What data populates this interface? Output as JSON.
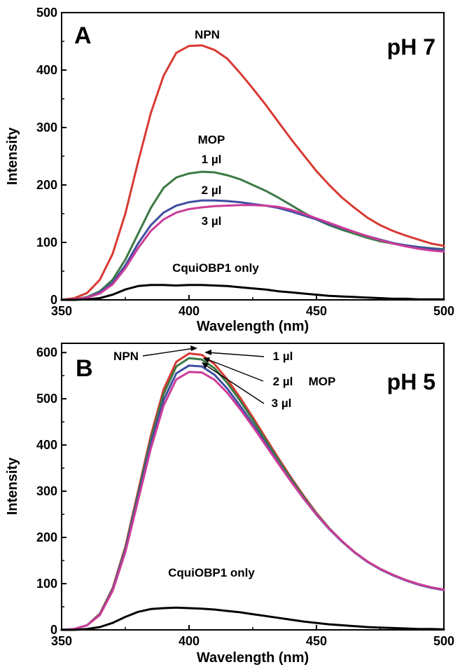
{
  "chart_data": [
    {
      "type": "line",
      "panel_label": "A",
      "condition": "pH 7",
      "xlabel": "Wavelength (nm)",
      "ylabel": "Intensity",
      "xlim": [
        350,
        500
      ],
      "ylim": [
        0,
        500
      ],
      "xticks": [
        "350",
        "400",
        "450",
        "500"
      ],
      "yticks": [
        "0",
        "100",
        "200",
        "300",
        "400",
        "500"
      ],
      "x": [
        350,
        355,
        360,
        365,
        370,
        375,
        380,
        385,
        390,
        395,
        400,
        405,
        410,
        415,
        420,
        425,
        430,
        435,
        440,
        445,
        450,
        455,
        460,
        465,
        470,
        475,
        480,
        485,
        490,
        495,
        500
      ],
      "series": [
        {
          "name": "NPN",
          "color": "#d83a33",
          "values": [
            0,
            3,
            12,
            35,
            80,
            150,
            240,
            325,
            390,
            430,
            442,
            443,
            435,
            420,
            395,
            368,
            340,
            310,
            280,
            252,
            224,
            200,
            178,
            160,
            143,
            130,
            120,
            112,
            105,
            98,
            94
          ]
        },
        {
          "name": "1 µl",
          "color": "#3c7a45",
          "values": [
            0,
            1,
            5,
            15,
            35,
            70,
            115,
            160,
            195,
            213,
            220,
            223,
            222,
            217,
            210,
            200,
            190,
            178,
            165,
            152,
            140,
            130,
            122,
            115,
            108,
            102,
            98,
            95,
            92,
            90,
            88
          ]
        },
        {
          "name": "2 µl",
          "color": "#3f4ea2",
          "values": [
            0,
            1,
            4,
            13,
            30,
            60,
            98,
            130,
            152,
            164,
            170,
            173,
            173,
            172,
            170,
            167,
            164,
            160,
            154,
            147,
            140,
            132,
            125,
            118,
            111,
            105,
            99,
            95,
            92,
            89,
            87
          ]
        },
        {
          "name": "3 µl",
          "color": "#cc3c98",
          "values": [
            0,
            1,
            4,
            11,
            27,
            55,
            90,
            120,
            140,
            152,
            158,
            161,
            163,
            164,
            165,
            165,
            164,
            162,
            157,
            150,
            142,
            134,
            126,
            118,
            111,
            104,
            98,
            93,
            89,
            86,
            84
          ]
        },
        {
          "name": "CquiOBP1 only",
          "color": "#000000",
          "values": [
            0,
            0,
            1,
            3,
            9,
            18,
            24,
            26,
            26,
            25,
            26,
            26,
            25,
            24,
            22,
            20,
            18,
            15,
            13,
            11,
            9,
            7,
            6,
            5,
            4,
            3,
            2,
            2,
            1,
            1,
            1
          ]
        }
      ],
      "annotations": [
        "NPN",
        "MOP",
        "1 µl",
        "2 µl",
        "3 µl",
        "CquiOBP1 only"
      ]
    },
    {
      "type": "line",
      "panel_label": "B",
      "condition": "pH 5",
      "xlabel": "Wavelength (nm)",
      "ylabel": "Intensity",
      "xlim": [
        350,
        500
      ],
      "ylim": [
        0,
        620
      ],
      "xticks": [
        "350",
        "400",
        "450",
        "500"
      ],
      "yticks": [
        "0",
        "100",
        "200",
        "300",
        "400",
        "500",
        "600"
      ],
      "x": [
        350,
        355,
        360,
        365,
        370,
        375,
        380,
        385,
        390,
        395,
        400,
        405,
        410,
        415,
        420,
        425,
        430,
        435,
        440,
        445,
        450,
        455,
        460,
        465,
        470,
        475,
        480,
        485,
        490,
        495,
        500
      ],
      "series": [
        {
          "name": "NPN",
          "color": "#d83a33",
          "values": [
            0,
            2,
            10,
            35,
            90,
            180,
            300,
            420,
            520,
            580,
            598,
            595,
            575,
            542,
            503,
            460,
            416,
            372,
            330,
            290,
            253,
            220,
            192,
            168,
            148,
            132,
            119,
            108,
            99,
            92,
            87
          ]
        },
        {
          "name": "1 µl",
          "color": "#3c7a45",
          "values": [
            0,
            2,
            10,
            34,
            88,
            176,
            294,
            412,
            510,
            570,
            588,
            585,
            566,
            534,
            496,
            454,
            411,
            368,
            327,
            288,
            252,
            220,
            192,
            168,
            148,
            132,
            119,
            108,
            99,
            92,
            87
          ]
        },
        {
          "name": "2 µl",
          "color": "#3f4ea2",
          "values": [
            0,
            2,
            10,
            33,
            86,
            172,
            287,
            402,
            497,
            555,
            572,
            570,
            552,
            522,
            485,
            445,
            404,
            362,
            322,
            284,
            249,
            218,
            191,
            167,
            147,
            131,
            118,
            107,
            98,
            91,
            86
          ]
        },
        {
          "name": "3 µl",
          "color": "#cc3c98",
          "values": [
            0,
            2,
            10,
            32,
            84,
            168,
            280,
            392,
            485,
            542,
            558,
            557,
            541,
            513,
            478,
            440,
            400,
            360,
            321,
            284,
            250,
            219,
            192,
            168,
            148,
            132,
            119,
            108,
            99,
            92,
            87
          ]
        },
        {
          "name": "CquiOBP1 only",
          "color": "#000000",
          "values": [
            0,
            0,
            2,
            6,
            15,
            28,
            39,
            45,
            47,
            48,
            47,
            46,
            44,
            41,
            38,
            34,
            30,
            26,
            22,
            18,
            15,
            12,
            10,
            8,
            6,
            5,
            4,
            3,
            2,
            2,
            1
          ]
        }
      ],
      "annotations": [
        "NPN",
        "1 µl",
        "2 µl",
        "MOP",
        "3 µl",
        "CquiOBP1 only"
      ]
    }
  ]
}
